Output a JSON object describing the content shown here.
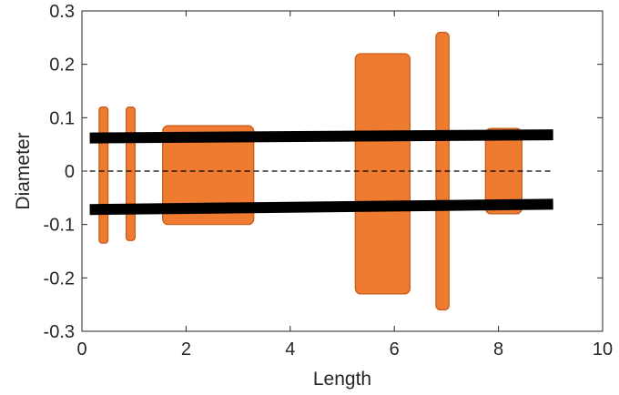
{
  "chart_data": {
    "type": "bar",
    "xlabel": "Length",
    "ylabel": "Diameter",
    "xlim": [
      0,
      10
    ],
    "ylim": [
      -0.3,
      0.3
    ],
    "xticks": [
      "0",
      "2",
      "4",
      "6",
      "8",
      "10"
    ],
    "yticks": [
      "0.3",
      "0.2",
      "0.1",
      "0",
      "-0.1",
      "-0.2",
      "-0.3"
    ],
    "grid": false,
    "series": [
      {
        "values": [
          {
            "x0": 0.33,
            "x1": 0.5,
            "top": 0.12,
            "bottom": -0.135
          },
          {
            "x0": 0.85,
            "x1": 1.02,
            "top": 0.12,
            "bottom": -0.13
          },
          {
            "x0": 1.55,
            "x1": 3.3,
            "top": 0.085,
            "bottom": -0.1
          },
          {
            "x0": 5.25,
            "x1": 6.3,
            "top": 0.22,
            "bottom": -0.23
          },
          {
            "x0": 6.8,
            "x1": 7.05,
            "top": 0.26,
            "bottom": -0.26
          },
          {
            "x0": 7.75,
            "x1": 8.45,
            "top": 0.08,
            "bottom": -0.08
          }
        ],
        "color": "#ee7b30"
      }
    ],
    "shaft_lines": [
      {
        "x": [
          0.15,
          9.05
        ],
        "y": [
          0.062,
          0.068
        ]
      },
      {
        "x": [
          0.15,
          9.05
        ],
        "y": [
          -0.072,
          -0.062
        ]
      }
    ],
    "centerline": {
      "x": [
        0.15,
        9.05
      ],
      "y": 0
    }
  },
  "colors": {
    "bar_fill": "#ee7b30",
    "bar_stroke": "#c25a18",
    "shaft": "#000000",
    "axis": "#262626"
  }
}
